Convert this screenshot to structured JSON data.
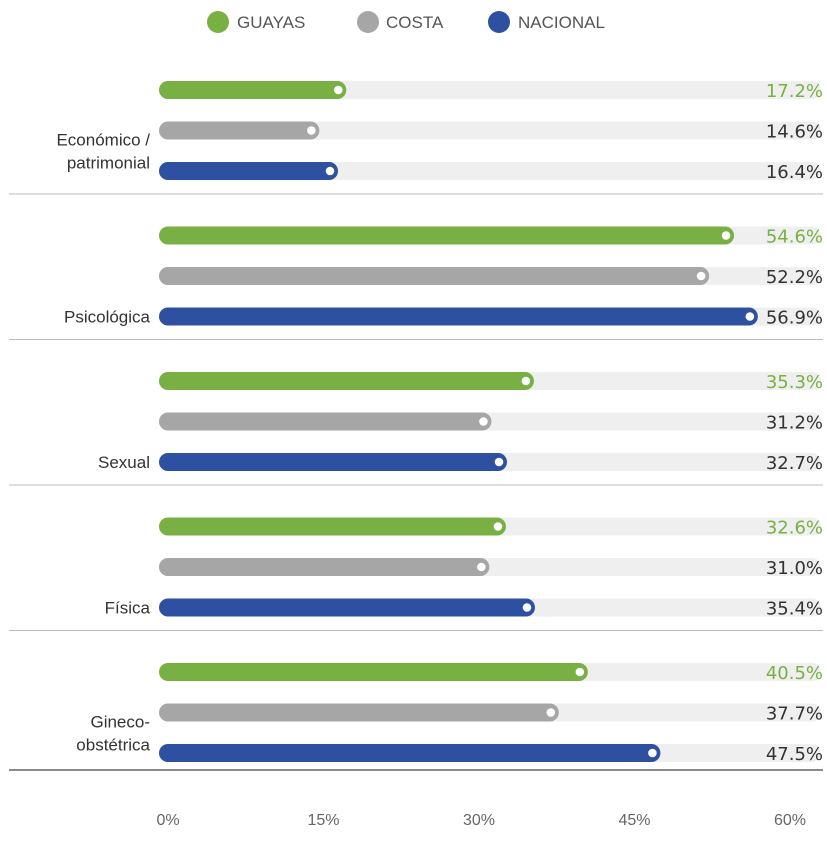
{
  "chart_data": {
    "type": "bar",
    "orientation": "horizontal",
    "categories": [
      [
        "Económico /",
        "patrimonial"
      ],
      [
        "Psicológica"
      ],
      [
        "Sexual"
      ],
      [
        "Física"
      ],
      [
        "Gineco-",
        "obstétrica"
      ]
    ],
    "series": [
      {
        "name": "GUAYAS",
        "color": "#78b043",
        "values": [
          17.2,
          54.6,
          35.3,
          32.6,
          40.5
        ],
        "labels": [
          "17.2%",
          "54.6%",
          "35.3%",
          "32.6%",
          "40.5%"
        ]
      },
      {
        "name": "COSTA",
        "color": "#a6a6a6",
        "values": [
          14.6,
          52.2,
          31.2,
          31.0,
          37.7
        ],
        "labels": [
          "14.6%",
          "52.2%",
          "31.2%",
          "31.0%",
          "37.7%"
        ]
      },
      {
        "name": "NACIONAL",
        "color": "#2d50a0",
        "values": [
          16.4,
          56.9,
          32.7,
          35.4,
          47.5
        ],
        "labels": [
          "16.4%",
          "56.9%",
          "32.7%",
          "35.4%",
          "47.5%"
        ]
      }
    ],
    "xlim": [
      0,
      60
    ],
    "xticks": [
      "0%",
      "15%",
      "30%",
      "45%",
      "60%"
    ],
    "xtick_values": [
      0,
      15,
      30,
      45,
      60
    ],
    "legend_position": "top-center",
    "track_color": "#efefef",
    "label_colors": {
      "GUAYAS": "#78b043",
      "COSTA": "#333333",
      "NACIONAL": "#333333"
    },
    "divider_color": "#bbbbbb"
  }
}
